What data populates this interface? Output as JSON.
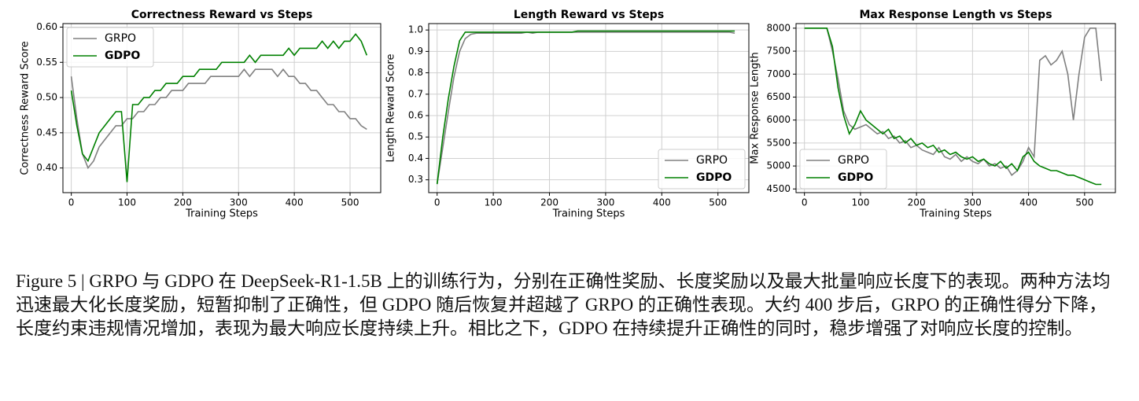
{
  "chart_data": [
    {
      "type": "line",
      "title": "Correctness Reward vs Steps",
      "xlabel": "Training Steps",
      "ylabel": "Correctness Reward Score",
      "x": [
        0,
        10,
        20,
        30,
        40,
        50,
        60,
        70,
        80,
        90,
        100,
        110,
        120,
        130,
        140,
        150,
        160,
        170,
        180,
        190,
        200,
        210,
        220,
        230,
        240,
        250,
        260,
        270,
        280,
        290,
        300,
        310,
        320,
        330,
        340,
        350,
        360,
        370,
        380,
        390,
        400,
        410,
        420,
        430,
        440,
        450,
        460,
        470,
        480,
        490,
        500,
        510,
        520,
        530
      ],
      "series": [
        {
          "name": "GRPO",
          "color": "#808080",
          "values": [
            0.53,
            0.47,
            0.42,
            0.4,
            0.41,
            0.43,
            0.44,
            0.45,
            0.46,
            0.46,
            0.47,
            0.47,
            0.48,
            0.48,
            0.49,
            0.49,
            0.5,
            0.5,
            0.51,
            0.51,
            0.51,
            0.52,
            0.52,
            0.52,
            0.52,
            0.53,
            0.53,
            0.53,
            0.53,
            0.53,
            0.53,
            0.54,
            0.53,
            0.54,
            0.54,
            0.54,
            0.54,
            0.53,
            0.54,
            0.53,
            0.53,
            0.52,
            0.52,
            0.51,
            0.51,
            0.5,
            0.49,
            0.49,
            0.48,
            0.48,
            0.47,
            0.47,
            0.46,
            0.455
          ]
        },
        {
          "name": "GDPO",
          "color": "#008000",
          "values": [
            0.51,
            0.46,
            0.42,
            0.41,
            0.43,
            0.45,
            0.46,
            0.47,
            0.48,
            0.48,
            0.38,
            0.49,
            0.49,
            0.5,
            0.5,
            0.51,
            0.51,
            0.52,
            0.52,
            0.52,
            0.53,
            0.53,
            0.53,
            0.54,
            0.54,
            0.54,
            0.54,
            0.55,
            0.55,
            0.55,
            0.55,
            0.55,
            0.56,
            0.55,
            0.56,
            0.56,
            0.56,
            0.56,
            0.56,
            0.57,
            0.56,
            0.57,
            0.57,
            0.57,
            0.57,
            0.58,
            0.57,
            0.58,
            0.57,
            0.58,
            0.58,
            0.59,
            0.58,
            0.56
          ]
        }
      ],
      "xlim": [
        -15,
        555
      ],
      "xticks": [
        0,
        100,
        200,
        300,
        400,
        500
      ],
      "ylim": [
        0.365,
        0.605
      ],
      "yticks": [
        {
          "value": 0.4,
          "label": "0.40"
        },
        0.45,
        {
          "value": 0.5,
          "label": "0.50"
        },
        0.55,
        {
          "value": 0.6,
          "label": "0.60"
        }
      ],
      "grid": true,
      "legend": "upper left"
    },
    {
      "type": "line",
      "title": "Length Reward vs Steps",
      "xlabel": "Training Steps",
      "ylabel": "Length Reward Score",
      "x": [
        0,
        10,
        20,
        30,
        40,
        50,
        60,
        70,
        80,
        90,
        100,
        110,
        120,
        130,
        140,
        150,
        160,
        170,
        180,
        190,
        200,
        210,
        220,
        230,
        240,
        250,
        260,
        270,
        280,
        290,
        300,
        310,
        320,
        330,
        340,
        350,
        360,
        370,
        380,
        390,
        400,
        410,
        420,
        430,
        440,
        450,
        460,
        470,
        480,
        490,
        500,
        510,
        520,
        530
      ],
      "series": [
        {
          "name": "GRPO",
          "color": "#808080",
          "values": [
            0.28,
            0.45,
            0.62,
            0.78,
            0.9,
            0.96,
            0.98,
            0.985,
            0.985,
            0.985,
            0.985,
            0.985,
            0.985,
            0.985,
            0.985,
            0.985,
            0.99,
            0.985,
            0.99,
            0.99,
            0.99,
            0.99,
            0.99,
            0.99,
            0.99,
            0.99,
            0.99,
            0.99,
            0.99,
            0.99,
            0.99,
            0.99,
            0.99,
            0.99,
            0.99,
            0.99,
            0.99,
            0.99,
            0.99,
            0.99,
            0.99,
            0.99,
            0.99,
            0.99,
            0.99,
            0.99,
            0.99,
            0.99,
            0.99,
            0.99,
            0.99,
            0.99,
            0.99,
            0.985
          ]
        },
        {
          "name": "GDPO",
          "color": "#008000",
          "values": [
            0.28,
            0.5,
            0.68,
            0.83,
            0.95,
            0.99,
            0.99,
            0.99,
            0.99,
            0.99,
            0.99,
            0.99,
            0.99,
            0.99,
            0.99,
            0.99,
            0.99,
            0.99,
            0.99,
            0.99,
            0.99,
            0.99,
            0.99,
            0.99,
            0.99,
            0.995,
            0.995,
            0.995,
            0.995,
            0.995,
            0.995,
            0.995,
            0.995,
            0.995,
            0.995,
            0.995,
            0.995,
            0.995,
            0.995,
            0.995,
            0.995,
            0.995,
            0.995,
            0.995,
            0.995,
            0.995,
            0.995,
            0.995,
            0.995,
            0.995,
            0.995,
            0.995,
            0.995,
            0.995
          ]
        }
      ],
      "xlim": [
        -15,
        555
      ],
      "xticks": [
        0,
        100,
        200,
        300,
        400,
        500
      ],
      "ylim": [
        0.24,
        1.03
      ],
      "yticks": [
        0.3,
        0.4,
        0.5,
        0.6,
        0.7,
        0.8,
        0.9,
        {
          "value": 1.0,
          "label": "1.0"
        }
      ],
      "grid": true,
      "legend": "lower right"
    },
    {
      "type": "line",
      "title": "Max Response Length vs Steps",
      "xlabel": "Training Steps",
      "ylabel": "Max Response Length",
      "x": [
        0,
        10,
        20,
        30,
        40,
        50,
        60,
        70,
        80,
        90,
        100,
        110,
        120,
        130,
        140,
        150,
        160,
        170,
        180,
        190,
        200,
        210,
        220,
        230,
        240,
        250,
        260,
        270,
        280,
        290,
        300,
        310,
        320,
        330,
        340,
        350,
        360,
        370,
        380,
        390,
        400,
        410,
        420,
        430,
        440,
        450,
        460,
        470,
        480,
        490,
        500,
        510,
        520,
        530
      ],
      "series": [
        {
          "name": "GRPO",
          "color": "#808080",
          "values": [
            8000,
            8000,
            8000,
            8000,
            8000,
            7500,
            6900,
            6200,
            5900,
            5800,
            5850,
            5900,
            5800,
            5700,
            5750,
            5600,
            5650,
            5500,
            5550,
            5400,
            5450,
            5350,
            5300,
            5250,
            5400,
            5200,
            5150,
            5250,
            5100,
            5200,
            5100,
            5050,
            5150,
            5000,
            5050,
            4950,
            5000,
            4800,
            4900,
            5100,
            5400,
            5200,
            7300,
            7400,
            7200,
            7300,
            7500,
            7000,
            6000,
            7000,
            7800,
            8000,
            8000,
            6850
          ]
        },
        {
          "name": "GDPO",
          "color": "#008000",
          "values": [
            8000,
            8000,
            8000,
            8000,
            8000,
            7600,
            6700,
            6100,
            5700,
            5900,
            6200,
            6000,
            5900,
            5800,
            5700,
            5800,
            5600,
            5650,
            5500,
            5600,
            5450,
            5500,
            5400,
            5450,
            5300,
            5350,
            5250,
            5300,
            5200,
            5150,
            5200,
            5100,
            5150,
            5050,
            5000,
            5100,
            4950,
            5050,
            4900,
            5200,
            5300,
            5100,
            5000,
            4950,
            4900,
            4900,
            4850,
            4800,
            4800,
            4750,
            4700,
            4650,
            4600,
            4600
          ]
        }
      ],
      "xlim": [
        -15,
        555
      ],
      "xticks": [
        0,
        100,
        200,
        300,
        400,
        500
      ],
      "ylim": [
        4420,
        8100
      ],
      "yticks": [
        4500,
        5000,
        5500,
        6000,
        6500,
        7000,
        7500,
        8000
      ],
      "grid": true,
      "legend": "lower left"
    }
  ],
  "caption": "Figure 5 | GRPO 与 GDPO 在 DeepSeek-R1-1.5B 上的训练行为，分别在正确性奖励、长度奖励以及最大批量响应长度下的表现。两种方法均迅速最大化长度奖励，短暂抑制了正确性，但 GDPO 随后恢复并超越了 GRPO 的正确性表现。大约 400 步后，GRPO 的正确性得分下降，长度约束违规情况增加，表现为最大响应长度持续上升。相比之下，GDPO 在持续提升正确性的同时，稳步增强了对响应长度的控制。"
}
